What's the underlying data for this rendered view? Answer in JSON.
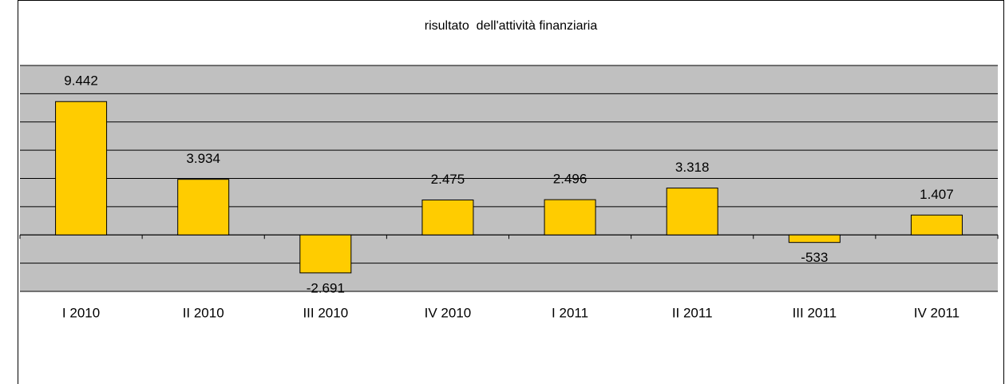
{
  "chart_data": {
    "type": "bar",
    "title": "risultato  dell'attività finanziaria",
    "categories": [
      "I 2010",
      "II 2010",
      "III 2010",
      "IV 2010",
      "I 2011",
      "II 2011",
      "III 2011",
      "IV 2011"
    ],
    "values": [
      9442,
      3934,
      -2691,
      2475,
      2496,
      3318,
      -533,
      1407
    ],
    "value_labels": [
      "9.442",
      "3.934",
      "-2.691",
      "2.475",
      "2.496",
      "3.318",
      "-533",
      "1.407"
    ],
    "color": "#ffcc00",
    "ylim": [
      -4000,
      12000
    ],
    "yticks": [
      -4000,
      -2000,
      0,
      2000,
      4000,
      6000,
      8000,
      10000,
      12000
    ],
    "grid": true
  }
}
